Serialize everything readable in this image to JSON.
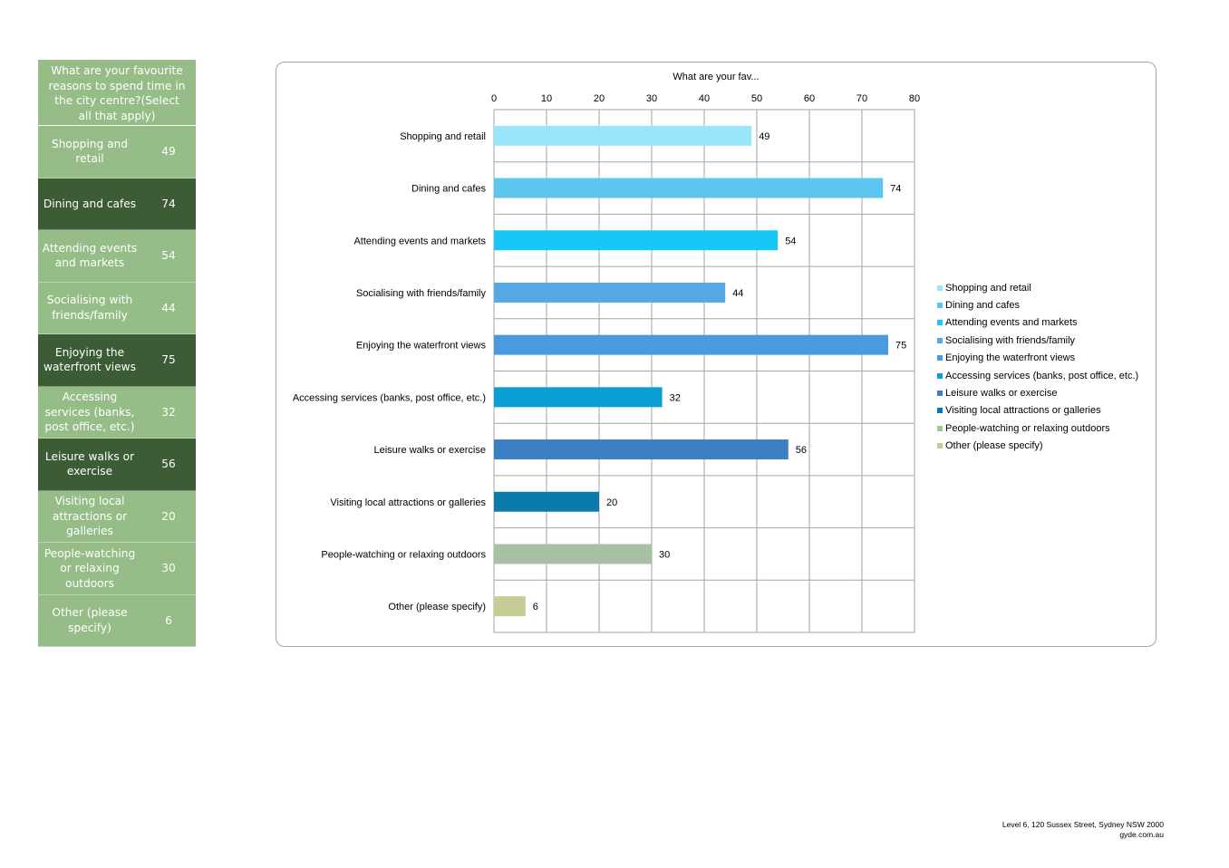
{
  "side_table": {
    "header": "What are your favourite reasons to spend time in the city centre?(Select all that apply)",
    "rows": [
      {
        "label": "Shopping and retail",
        "value": "49",
        "shade": "light"
      },
      {
        "label": "Dining and cafes",
        "value": "74",
        "shade": "dark"
      },
      {
        "label": "Attending events and markets",
        "value": "54",
        "shade": "light"
      },
      {
        "label": "Socialising with friends/family",
        "value": "44",
        "shade": "light"
      },
      {
        "label": "Enjoying the waterfront views",
        "value": "75",
        "shade": "dark"
      },
      {
        "label": "Accessing services (banks, post office, etc.)",
        "value": "32",
        "shade": "light"
      },
      {
        "label": "Leisure walks or exercise",
        "value": "56",
        "shade": "dark"
      },
      {
        "label": "Visiting local attractions or galleries",
        "value": "20",
        "shade": "light"
      },
      {
        "label": "People-watching or relaxing outdoors",
        "value": "30",
        "shade": "light"
      },
      {
        "label": "Other (please specify)",
        "value": "6",
        "shade": "light"
      }
    ]
  },
  "chart_data": {
    "type": "bar",
    "orientation": "horizontal",
    "title": "What are your fav...",
    "categories": [
      "Shopping and retail",
      "Dining and cafes",
      "Attending events and markets",
      "Socialising with friends/family",
      "Enjoying the waterfront views",
      "Accessing services (banks, post office, etc.)",
      "Leisure walks or exercise",
      "Visiting local attractions or galleries",
      "People-watching or relaxing outdoors",
      "Other (please specify)"
    ],
    "values": [
      49,
      74,
      54,
      44,
      75,
      32,
      56,
      20,
      30,
      6
    ],
    "colors": [
      "#99e6fb",
      "#5dc6ee",
      "#16c7f7",
      "#56a9e6",
      "#4a9ae0",
      "#0b9ed4",
      "#3b80c3",
      "#0a7bab",
      "#a7c2a3",
      "#c7cb94"
    ],
    "xlim": [
      0,
      80
    ],
    "xticks": [
      0,
      10,
      20,
      30,
      40,
      50,
      60,
      70,
      80
    ],
    "axis_position": "top",
    "grid": true,
    "legend": "right",
    "data_labels": true
  },
  "footer": {
    "address": "Level 6, 120 Sussex Street, Sydney NSW 2000",
    "website": "gyde.com.au"
  }
}
